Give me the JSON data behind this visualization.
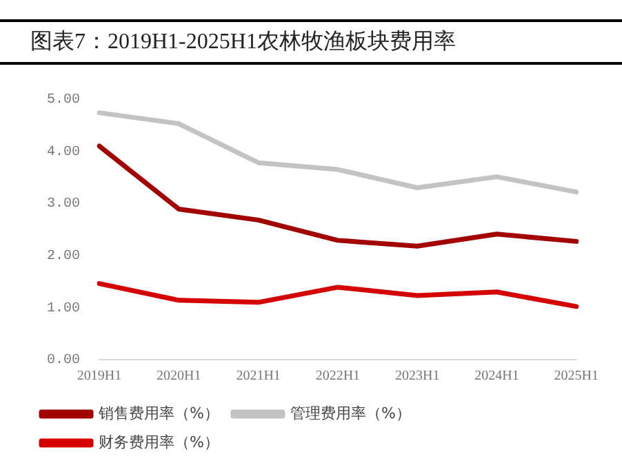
{
  "chart_data": {
    "type": "line",
    "title": "图表7：2019H1-2025H1农林牧渔板块费用率",
    "categories": [
      "2019H1",
      "2020H1",
      "2021H1",
      "2022H1",
      "2023H1",
      "2024H1",
      "2025H1"
    ],
    "series": [
      {
        "name": "销售费用率（%）",
        "color": "#a30000",
        "values": [
          4.1,
          2.89,
          2.68,
          2.29,
          2.18,
          2.41,
          2.27
        ]
      },
      {
        "name": "管理费用率（%）",
        "color": "#c3c3c3",
        "values": [
          4.74,
          4.53,
          3.78,
          3.65,
          3.3,
          3.51,
          3.22
        ]
      },
      {
        "name": "财务费用率（%）",
        "color": "#d50000",
        "values": [
          1.46,
          1.14,
          1.1,
          1.39,
          1.23,
          1.3,
          1.02
        ]
      }
    ],
    "ylim": [
      0,
      5
    ],
    "yticks": [
      {
        "value": 0,
        "label": "0.00"
      },
      {
        "value": 1,
        "label": "1.00"
      },
      {
        "value": 2,
        "label": "2.00"
      },
      {
        "value": 3,
        "label": "3.00"
      },
      {
        "value": 4,
        "label": "4.00"
      },
      {
        "value": 5,
        "label": "5.00"
      }
    ],
    "grid": false,
    "legend": "bottom",
    "marker": "none",
    "line_style": "solid"
  }
}
